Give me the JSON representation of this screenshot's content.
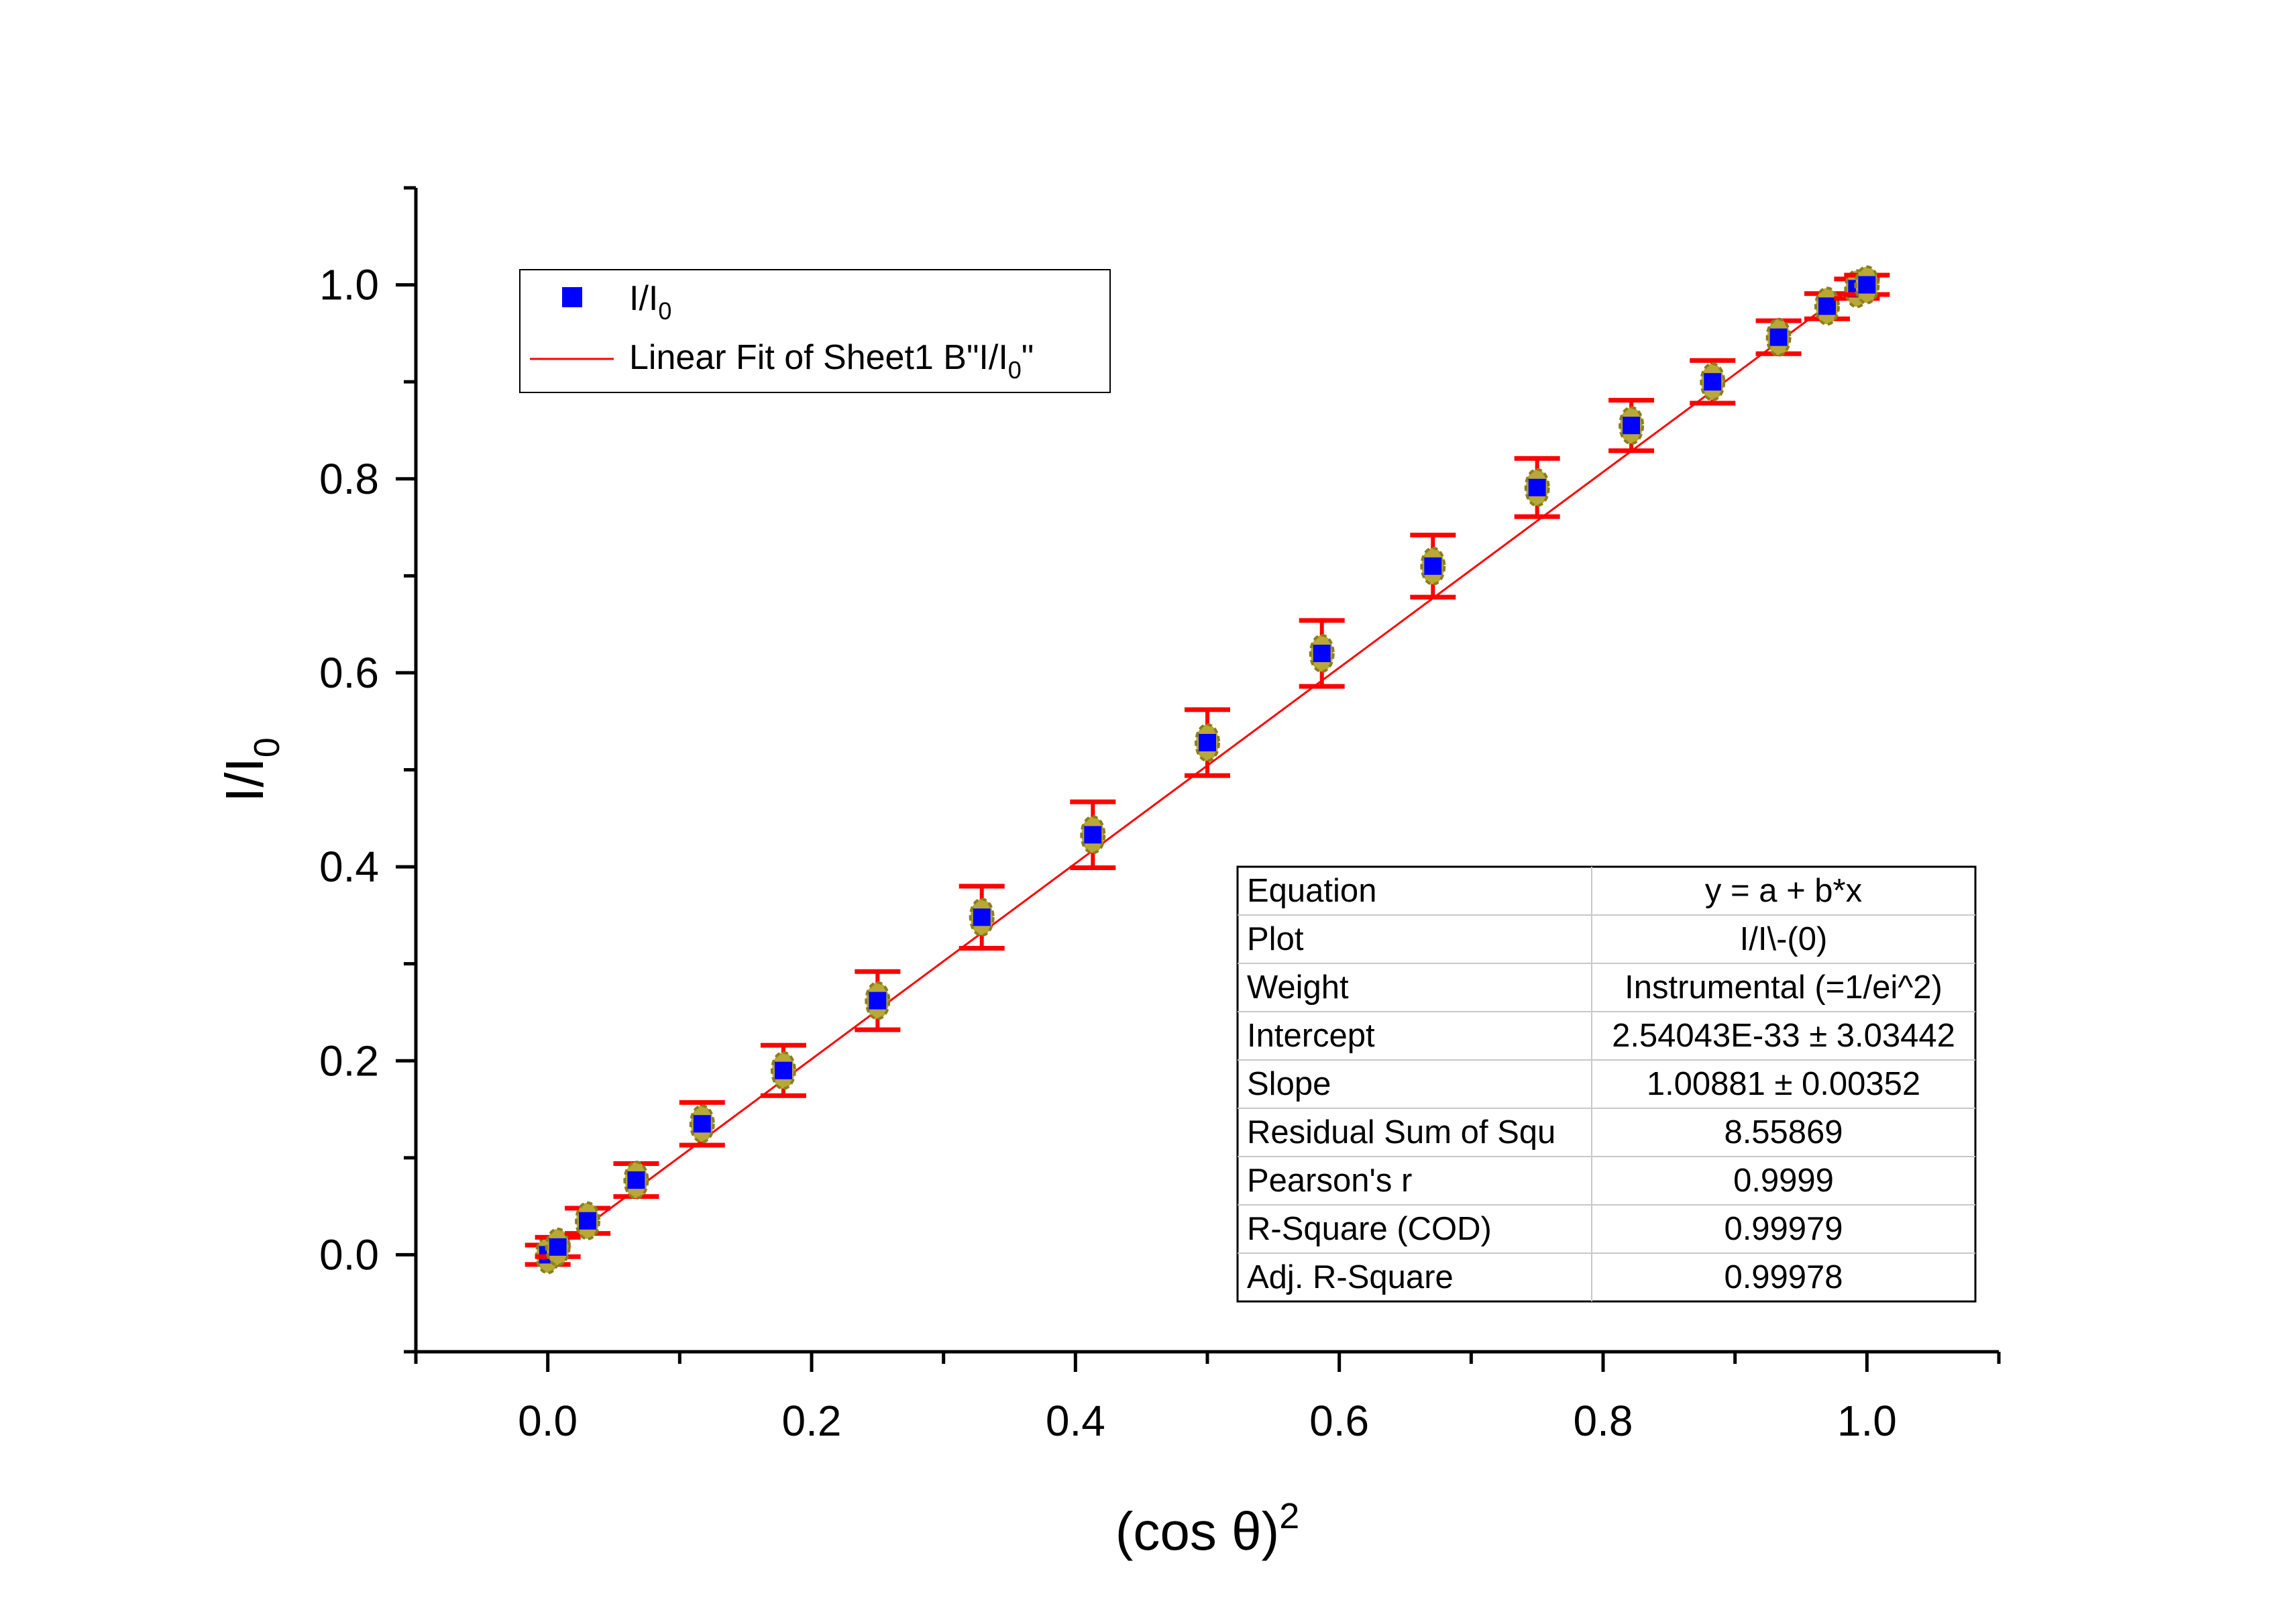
{
  "chart_data": {
    "type": "scatter",
    "xlabel": {
      "base": "(cos θ)",
      "sup": "2"
    },
    "ylabel": {
      "base": "I/I",
      "sub": "0"
    },
    "xlim": [
      -0.1,
      1.1
    ],
    "ylim": [
      -0.1,
      1.1
    ],
    "x_ticks": [
      0.0,
      0.2,
      0.4,
      0.6,
      0.8,
      1.0
    ],
    "y_ticks": [
      0.0,
      0.2,
      0.4,
      0.6,
      0.8,
      1.0
    ],
    "x_tick_labels": [
      "0.0",
      "0.2",
      "0.4",
      "0.6",
      "0.8",
      "1.0"
    ],
    "y_tick_labels": [
      "0.0",
      "0.2",
      "0.4",
      "0.6",
      "0.8",
      "1.0"
    ],
    "grid": false,
    "legend_position": "top-left",
    "series": [
      {
        "name": {
          "base": "I/I",
          "sub": "0"
        },
        "kind": "scatter",
        "marker": "square",
        "color": "#0000ff",
        "error_color": "#ff0000",
        "x": [
          0.0,
          0.0076,
          0.0302,
          0.067,
          0.117,
          0.1786,
          0.25,
          0.329,
          0.4132,
          0.5,
          0.5868,
          0.671,
          0.75,
          0.8214,
          0.883,
          0.933,
          0.9698,
          0.9924,
          1.0
        ],
        "y": [
          0.0,
          0.008,
          0.035,
          0.077,
          0.135,
          0.19,
          0.262,
          0.348,
          0.433,
          0.528,
          0.62,
          0.71,
          0.791,
          0.855,
          0.9,
          0.946,
          0.978,
          0.996,
          1.0
        ],
        "yerr": [
          0.01,
          0.01,
          0.013,
          0.017,
          0.022,
          0.026,
          0.03,
          0.032,
          0.034,
          0.034,
          0.034,
          0.032,
          0.03,
          0.026,
          0.022,
          0.017,
          0.013,
          0.01,
          0.01
        ]
      },
      {
        "name": "Linear Fit of Sheet1 B\"I/I₀\"",
        "legend_label": {
          "base": "Linear Fit of Sheet1 B\"I/I",
          "sub": "0",
          "tail": "\""
        },
        "kind": "line",
        "color": "#ff0000",
        "x": [
          0.0,
          1.0
        ],
        "y": [
          0.0,
          1.00881
        ]
      }
    ],
    "stats_table": {
      "position": "bottom-right",
      "rows": [
        {
          "label": "Equation",
          "value": "y = a + b*x"
        },
        {
          "label": "Plot",
          "value": "I/I\\-(0)"
        },
        {
          "label": "Weight",
          "value": "Instrumental (=1/ei^2)"
        },
        {
          "label": "Intercept",
          "value": "2.54043E-33 ± 3.03442"
        },
        {
          "label": "Slope",
          "value": "1.00881 ± 0.00352"
        },
        {
          "label": "Residual Sum of Squ",
          "value": "8.55869"
        },
        {
          "label": "Pearson's r",
          "value": "0.9999"
        },
        {
          "label": "R-Square (COD)",
          "value": "0.99979"
        },
        {
          "label": "Adj. R-Square",
          "value": "0.99978"
        }
      ]
    }
  }
}
